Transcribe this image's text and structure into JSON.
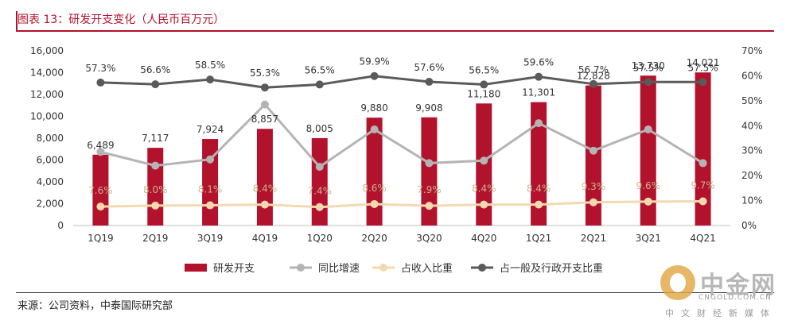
{
  "title": "图表 13：研发开支变化（人民币百万元）",
  "source": "来源：公司资料，中泰国际研究部",
  "watermark": {
    "name": "中金网",
    "domain": "CNGOLD.COM.CN",
    "tagline": "中文财经新媒体"
  },
  "chart_data": {
    "type": "bar",
    "categories": [
      "1Q19",
      "2Q19",
      "3Q19",
      "4Q19",
      "1Q20",
      "2Q20",
      "3Q20",
      "4Q20",
      "1Q21",
      "2Q21",
      "3Q21",
      "4Q21"
    ],
    "y_left": {
      "ticks": [
        0,
        2000,
        4000,
        6000,
        8000,
        10000,
        12000,
        14000,
        16000
      ],
      "tick_labels": [
        "0",
        "2,000",
        "4,000",
        "6,000",
        "8,000",
        "10,000",
        "12,000",
        "14,000",
        "16,000"
      ],
      "ylim": [
        0,
        16000
      ]
    },
    "y_right": {
      "ticks": [
        0,
        10,
        20,
        30,
        40,
        50,
        60,
        70
      ],
      "tick_labels": [
        "0%",
        "10%",
        "20%",
        "30%",
        "40%",
        "50%",
        "60%",
        "70%"
      ],
      "ylim": [
        0,
        70
      ]
    },
    "series": [
      {
        "name": "研发开支",
        "type": "bar",
        "axis": "left",
        "color": "#b3122c",
        "values": [
          6489,
          7117,
          7924,
          8857,
          8005,
          9880,
          9908,
          11180,
          11301,
          12828,
          13730,
          14021
        ],
        "labels": [
          "6,489",
          "7,117",
          "7,924",
          "8,857",
          "8,005",
          "9,880",
          "9,908",
          "11,180",
          "11,301",
          "12,828",
          "13,730",
          "14,021"
        ]
      },
      {
        "name": "同比增速",
        "type": "line",
        "axis": "right",
        "color": "#b4b4b4",
        "values": [
          29.5,
          24.0,
          26.5,
          48.5,
          23.5,
          38.5,
          25.0,
          26.0,
          41.0,
          30.0,
          38.5,
          25.0
        ],
        "labels": []
      },
      {
        "name": "占收入比重",
        "type": "line",
        "axis": "right",
        "color": "#f2d9b0",
        "values": [
          7.6,
          8.0,
          8.1,
          8.4,
          7.4,
          8.6,
          7.9,
          8.4,
          8.4,
          9.3,
          9.6,
          9.7
        ],
        "labels": [
          "7.6%",
          "8.0%",
          "8.1%",
          "8.4%",
          "7.4%",
          "8.6%",
          "7.9%",
          "8.4%",
          "8.4%",
          "9.3%",
          "9.6%",
          "9.7%"
        ]
      },
      {
        "name": "占一般及行政开支比重",
        "type": "line",
        "axis": "right",
        "color": "#5a5a5a",
        "values": [
          57.3,
          56.6,
          58.5,
          55.3,
          56.5,
          59.9,
          57.6,
          56.5,
          59.6,
          56.7,
          57.5,
          57.5
        ],
        "labels": [
          "57.3%",
          "56.6%",
          "58.5%",
          "55.3%",
          "56.5%",
          "59.9%",
          "57.6%",
          "56.5%",
          "59.6%",
          "56.7%",
          "57.5%",
          "57.5%"
        ]
      }
    ],
    "legend_position": "bottom",
    "grid": false
  }
}
